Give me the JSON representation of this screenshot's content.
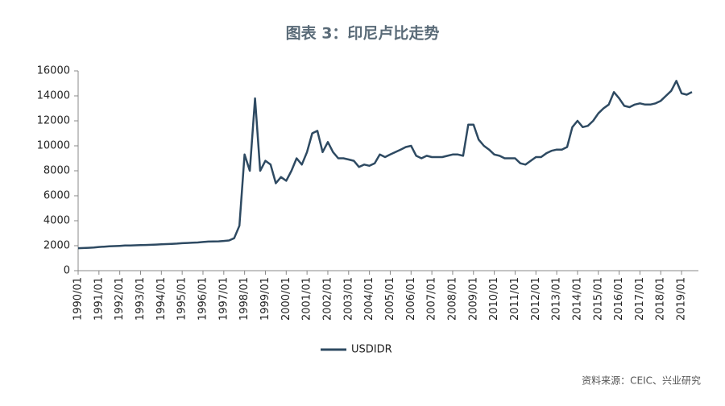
{
  "chart_data": {
    "type": "line",
    "title": "图表 3：印尼卢比走势",
    "source": "资料来源：CEIC、兴业研究",
    "categories": [
      "1990/01",
      null,
      null,
      null,
      "1991/01",
      null,
      null,
      null,
      "1992/01",
      null,
      null,
      null,
      "1993/01",
      null,
      null,
      null,
      "1994/01",
      null,
      null,
      null,
      "1995/01",
      null,
      null,
      null,
      "1996/01",
      null,
      null,
      null,
      "1997/01",
      null,
      null,
      null,
      "1998/01",
      null,
      null,
      null,
      "1999/01",
      null,
      null,
      null,
      "2000/01",
      null,
      null,
      null,
      "2001/01",
      null,
      null,
      null,
      "2002/01",
      null,
      null,
      null,
      "2003/01",
      null,
      null,
      null,
      "2004/01",
      null,
      null,
      null,
      "2005/01",
      null,
      null,
      null,
      "2006/01",
      null,
      null,
      null,
      "2007/01",
      null,
      null,
      null,
      "2008/01",
      null,
      null,
      null,
      "2009/01",
      null,
      null,
      null,
      "2010/01",
      null,
      null,
      null,
      "2011/01",
      null,
      null,
      null,
      "2012/01",
      null,
      null,
      null,
      "2013/01",
      null,
      null,
      null,
      "2014/01",
      null,
      null,
      null,
      "2015/01",
      null,
      null,
      null,
      "2016/01",
      null,
      null,
      null,
      "2017/01",
      null,
      null,
      null,
      "2018/01",
      null,
      null,
      null,
      "2019/01",
      null,
      null
    ],
    "series": [
      {
        "name": "USDIDR",
        "color": "#2e4a62",
        "values": [
          1800,
          1810,
          1830,
          1850,
          1900,
          1920,
          1950,
          1970,
          1990,
          2010,
          2020,
          2030,
          2050,
          2060,
          2070,
          2090,
          2110,
          2130,
          2150,
          2170,
          2200,
          2220,
          2240,
          2260,
          2300,
          2330,
          2340,
          2350,
          2380,
          2420,
          2600,
          3600,
          9300,
          8000,
          13800,
          8000,
          8800,
          8500,
          7000,
          7500,
          7200,
          8000,
          9000,
          8500,
          9500,
          11000,
          11200,
          9500,
          10300,
          9500,
          9000,
          9000,
          8900,
          8800,
          8300,
          8500,
          8400,
          8600,
          9300,
          9100,
          9300,
          9500,
          9700,
          9900,
          10000,
          9200,
          9000,
          9200,
          9100,
          9100,
          9100,
          9200,
          9300,
          9300,
          9200,
          11700,
          11700,
          10500,
          10000,
          9700,
          9300,
          9200,
          9000,
          9000,
          9000,
          8600,
          8500,
          8800,
          9100,
          9100,
          9400,
          9600,
          9700,
          9700,
          9900,
          11500,
          12000,
          11500,
          11600,
          12000,
          12600,
          13000,
          13300,
          14300,
          13800,
          13200,
          13100,
          13300,
          13400,
          13300,
          13300,
          13400,
          13600,
          14000,
          14400,
          15200,
          14200,
          14100,
          14300
        ]
      }
    ],
    "ylim": [
      0,
      16000
    ],
    "yticks": [
      0,
      2000,
      4000,
      6000,
      8000,
      10000,
      12000,
      14000,
      16000
    ],
    "legend": "bottom"
  }
}
